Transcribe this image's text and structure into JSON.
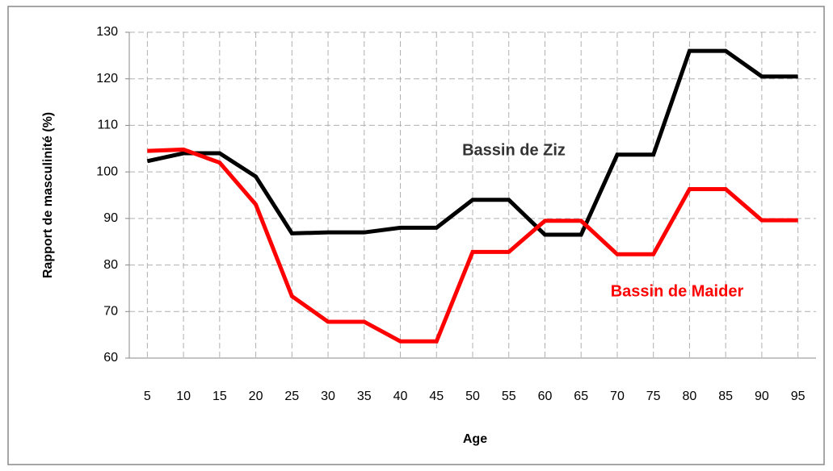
{
  "chart_data": {
    "type": "line",
    "x_label": "Age",
    "y_label": "Rapport de masculinité  (%)",
    "categories": [
      "5",
      "10",
      "15",
      "20",
      "25",
      "30",
      "35",
      "40",
      "45",
      "50",
      "55",
      "60",
      "65",
      "70",
      "75",
      "80",
      "85",
      "90",
      "95"
    ],
    "series": [
      {
        "name": "Bassin de Ziz",
        "color": "#000000",
        "label_color": "#333333",
        "values": [
          102.3,
          104,
          104,
          99,
          86.8,
          87,
          87,
          88,
          88,
          94,
          94,
          86.5,
          86.5,
          103.7,
          103.7,
          126,
          126,
          120.5,
          120.5
        ]
      },
      {
        "name": "Bassin de Maider",
        "color": "#ff0000",
        "label_color": "#ff0000",
        "values": [
          104.5,
          104.8,
          102,
          93,
          73.3,
          67.8,
          67.8,
          63.6,
          63.6,
          82.8,
          82.8,
          89.5,
          89.5,
          82.3,
          82.3,
          96.3,
          96.3,
          89.6,
          89.6
        ]
      }
    ],
    "ylim": [
      60,
      130
    ],
    "yticks": [
      60,
      70,
      80,
      90,
      100,
      110,
      120,
      130
    ],
    "grid": true
  }
}
